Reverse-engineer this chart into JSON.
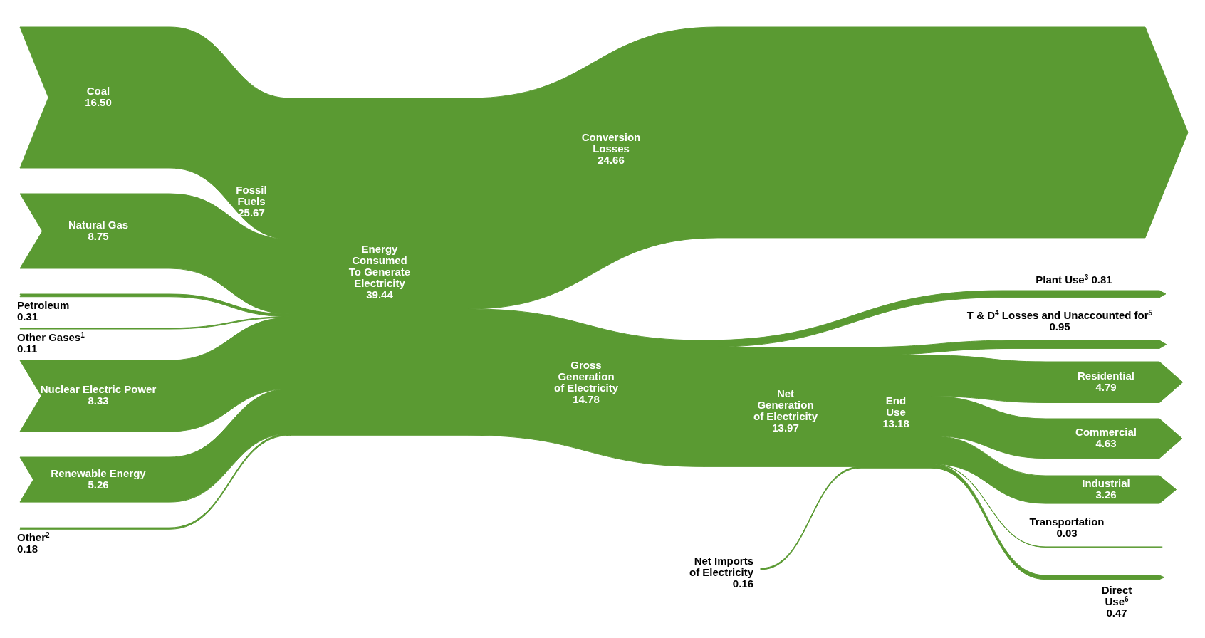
{
  "chart_data": {
    "type": "other",
    "color": "#5a9a32",
    "value_labels": [
      "16.50",
      "8.75",
      "0.31",
      "0.11",
      "25.67",
      "8.33",
      "5.26",
      "0.18",
      "39.44",
      "24.66",
      "14.78",
      "0.81",
      "13.97",
      "0.16",
      "0.95",
      "13.18",
      "4.79",
      "4.63",
      "3.26",
      "0.03",
      "0.47"
    ],
    "categories": [
      "Coal",
      "Natural Gas",
      "Petroleum",
      "Other Gases$^{1}$",
      "Fossil\nFuels",
      "Nuclear Electric Power",
      "Renewable Energy",
      "Other$^{2}$",
      "Energy\nConsumed\nTo Generate\nElectricity",
      "Conversion\nLosses",
      "Gross\nGeneration\nof Electricity",
      "Plant Use$^{3}$",
      "Net\nGeneration\nof Electricity",
      "Net Imports\nof Electricity",
      "T & D$^{4}$ Losses and Unaccounted for$^{5}$",
      "End\nUse",
      "Residential",
      "Commercial",
      "Industrial",
      "Transportation",
      "Direct\nUse$^{6}$"
    ],
    "values": [
      16.5,
      8.75,
      0.31,
      0.11,
      25.67,
      8.33,
      5.26,
      0.18,
      39.44,
      24.66,
      14.78,
      0.81,
      13.97,
      0.16,
      0.95,
      13.18,
      4.79,
      4.63,
      3.26,
      0.03,
      0.47
    ]
  }
}
